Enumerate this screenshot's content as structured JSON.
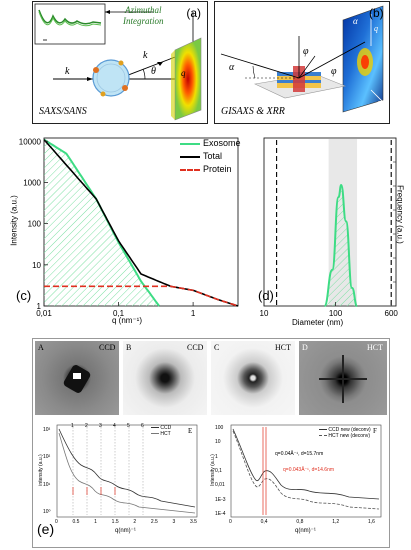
{
  "panel_a": {
    "label": "(a)",
    "caption": "SAXS/SANS",
    "integration_line1": "Azimuthal",
    "integration_line2": "Integration",
    "k_i": "k",
    "k_s": "k",
    "theta": "θ",
    "q_symbol": "q"
  },
  "panel_b": {
    "label": "(b)",
    "caption": "GISAXS & XRR",
    "alpha_i": "α",
    "alpha_f": "α",
    "phi_f": "φ",
    "phi_s": "φ",
    "q_z": "q",
    "q_y": "q"
  },
  "panel_c": {
    "label": "(c)",
    "ylabel": "Intensity (a.u.)",
    "xlabel": "q (nm⁻¹)",
    "yticks": [
      "10000",
      "1000",
      "100",
      "10",
      "1"
    ],
    "xticks": [
      "0,01",
      "0,1",
      "1"
    ],
    "legend": [
      {
        "name": "Exosome",
        "color": "#3ddc84"
      },
      {
        "name": "Total",
        "color": "#000000"
      },
      {
        "name": "Protein",
        "color": "#e03020"
      }
    ]
  },
  "panel_d": {
    "label": "(d)",
    "ylabel": "Frequency (a.u.)",
    "xlabel": "Diameter (nm)",
    "xticks": [
      "10",
      "100",
      "600"
    ]
  },
  "panel_e": {
    "label": "(e)",
    "images": [
      {
        "letter": "A",
        "tag": "CCD"
      },
      {
        "letter": "B",
        "tag": "CCD"
      },
      {
        "letter": "C",
        "tag": "HCT"
      },
      {
        "letter": "D",
        "tag": "HCT"
      }
    ],
    "plot_E": {
      "letter": "E",
      "legend": [
        "CCD",
        "HCT"
      ],
      "xlabel": "q(nm)⁻¹",
      "ylabel": "intensity (a.u.)",
      "xticks": [
        "0",
        "0.5",
        "1",
        "1.5",
        "2",
        "2.5",
        "3",
        "3.5"
      ],
      "yticks": [
        "10⁰",
        "10¹",
        "10²",
        "10³"
      ],
      "top_marks": [
        "1",
        "2",
        "3",
        "4",
        "5",
        "6"
      ]
    },
    "plot_F": {
      "letter": "F",
      "legend": [
        "CCD new (deconv)",
        "HCT new (deconv)"
      ],
      "xlabel": "q(nm)⁻¹",
      "ylabel": "Intensity (a.u.)",
      "xticks": [
        "0",
        "0,4",
        "0,8",
        "1,2",
        "1,6"
      ],
      "yticks": [
        "100",
        "10",
        "1",
        "0,1",
        "0,01",
        "1E-3",
        "1E-4"
      ],
      "annot1": "q=0.04Å⁻¹, d=15.7nm",
      "annot2": "q=0.043Å⁻¹, d=14.6nm"
    }
  },
  "chart_data": [
    {
      "type": "line",
      "title": "",
      "xlabel": "q (nm⁻¹)",
      "ylabel": "Intensity (a.u.)",
      "xscale": "log",
      "yscale": "log",
      "xlim": [
        0.01,
        4
      ],
      "ylim": [
        1,
        12000
      ],
      "series": [
        {
          "name": "Exosome",
          "x": [
            0.01,
            0.02,
            0.05,
            0.1,
            0.2,
            0.35
          ],
          "y": [
            11000,
            5000,
            400,
            35,
            4,
            1
          ]
        },
        {
          "name": "Total",
          "x": [
            0.01,
            0.05,
            0.1,
            0.2,
            0.5,
            1,
            2,
            4
          ],
          "y": [
            11000,
            400,
            38,
            6,
            3,
            2.4,
            1.5,
            1
          ]
        },
        {
          "name": "Protein",
          "x": [
            0.01,
            0.1,
            0.5,
            1,
            2,
            4
          ],
          "y": [
            3,
            3,
            3,
            2.4,
            1.5,
            1
          ]
        }
      ],
      "legend": "top-right"
    },
    {
      "type": "line",
      "xlabel": "Diameter (nm)",
      "ylabel": "Frequency (a.u.)",
      "xscale": "log",
      "xlim": [
        10,
        700
      ],
      "series": [
        {
          "x": [
            70,
            90,
            110,
            120,
            140,
            170,
            200
          ],
          "y": [
            0,
            0.3,
            0.9,
            1.0,
            0.7,
            0.15,
            0
          ]
        }
      ],
      "vlines": [
        15,
        600
      ]
    }
  ]
}
